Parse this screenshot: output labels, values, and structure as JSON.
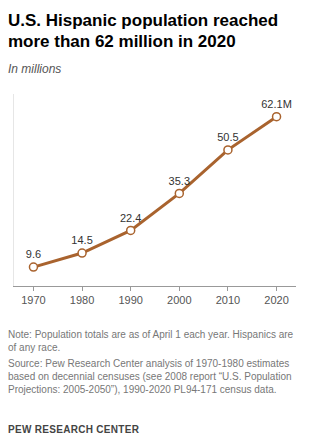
{
  "chart_data": {
    "type": "line",
    "title": "U.S. Hispanic population reached more than 62 million in 2020",
    "subtitle": "In millions",
    "x": [
      1970,
      1980,
      1990,
      2000,
      2010,
      2020
    ],
    "values": [
      9.6,
      14.5,
      22.4,
      35.3,
      50.5,
      62.1
    ],
    "value_labels": [
      "9.6",
      "14.5",
      "22.4",
      "35.3",
      "50.5",
      "62.1M"
    ],
    "color": "#a9632e",
    "marker": "circle_open",
    "data_labels": true,
    "xlim": [
      1966,
      2024
    ],
    "xticks": [
      1970,
      1980,
      1990,
      2000,
      2010,
      2020
    ],
    "ylim": [
      3,
      70
    ],
    "tick_labels": "x",
    "grid": false,
    "note": "Note: Population totals are as of April 1 each year. Hispanics are of any race.",
    "source": "Source: Pew Research Center analysis of 1970-1980 estimates based on decennial censuses (see 2008 report “U.S. Population Projections: 2005-2050”), 1990-2020 PL94-171 census data.",
    "credit": "PEW RESEARCH CENTER"
  }
}
